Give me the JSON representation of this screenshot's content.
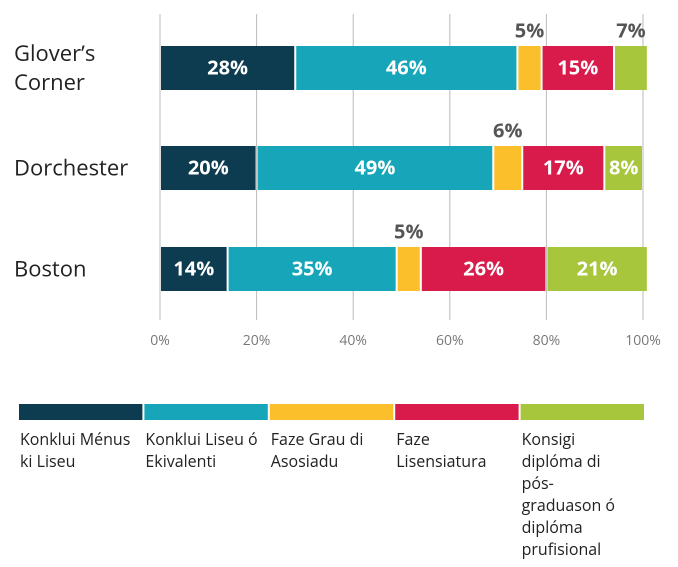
{
  "chart_data": {
    "type": "bar",
    "orientation": "horizontal",
    "stacked": true,
    "categories": [
      "Glover’s Corner",
      "Dorchester",
      "Boston"
    ],
    "series": [
      {
        "name": "Konklui Ménus ki Liseu",
        "color": "#0d3b4f",
        "values": [
          28,
          20,
          14
        ],
        "value_labels": [
          "28%",
          "20%",
          "14%"
        ]
      },
      {
        "name": "Konklui Liseu ó Ekivalenti",
        "color": "#17a6b9",
        "values": [
          46,
          49,
          35
        ],
        "value_labels": [
          "46%",
          "49%",
          "35%"
        ]
      },
      {
        "name": "Faze Grau di Asosiadu",
        "color": "#fbbf2b",
        "values": [
          5,
          6,
          5
        ],
        "value_labels": [
          "5%",
          "6%",
          "5%"
        ]
      },
      {
        "name": "Faze Lisensiatura",
        "color": "#d81b4b",
        "values": [
          15,
          17,
          26
        ],
        "value_labels": [
          "15%",
          "17%",
          "26%"
        ]
      },
      {
        "name": "Konsigi diplóma di pós-graduason ó diplóma prufisional",
        "color": "#a7c63c",
        "values": [
          7,
          8,
          21
        ],
        "value_labels": [
          "7%",
          "8%",
          "21%"
        ]
      }
    ],
    "xlim": [
      0,
      100
    ],
    "xticks": [
      {
        "value": 0,
        "label": "0%"
      },
      {
        "value": 20,
        "label": "20%"
      },
      {
        "value": 40,
        "label": "40%"
      },
      {
        "value": 60,
        "label": "60%"
      },
      {
        "value": 80,
        "label": "80%"
      },
      {
        "value": 100,
        "label": "100%"
      }
    ],
    "grid": true,
    "legend": "bottom"
  }
}
